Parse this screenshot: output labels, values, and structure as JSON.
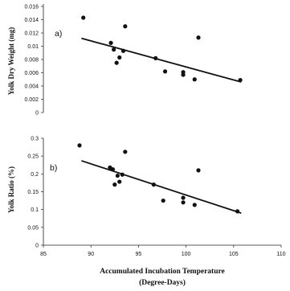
{
  "chart_data": {
    "type": "scatter",
    "xlabel": "Accumulated Incubation Temperature",
    "xlabel_sub": "(Degree-Days)",
    "xlim": [
      85,
      110
    ],
    "xticks": [
      "85",
      "90",
      "95",
      "100",
      "105",
      "110"
    ],
    "panels": [
      {
        "label": "a)",
        "ylabel": "Yolk Dry Weight (mg)",
        "ylim": [
          0,
          0.016
        ],
        "yticks": [
          "0",
          "0.002",
          "0.004",
          "0.006",
          "0.008",
          "0.01",
          "0.012",
          "0.014",
          "0.016"
        ],
        "points": [
          {
            "x": 89.2,
            "y": 0.0143
          },
          {
            "x": 92.1,
            "y": 0.0105
          },
          {
            "x": 92.4,
            "y": 0.0095
          },
          {
            "x": 92.7,
            "y": 0.0075
          },
          {
            "x": 93.0,
            "y": 0.0083
          },
          {
            "x": 93.4,
            "y": 0.0093
          },
          {
            "x": 93.6,
            "y": 0.013
          },
          {
            "x": 96.8,
            "y": 0.0082
          },
          {
            "x": 97.8,
            "y": 0.0062
          },
          {
            "x": 99.7,
            "y": 0.0061
          },
          {
            "x": 99.7,
            "y": 0.0057
          },
          {
            "x": 100.9,
            "y": 0.005
          },
          {
            "x": 101.3,
            "y": 0.0113
          },
          {
            "x": 105.7,
            "y": 0.0049
          }
        ],
        "trendline": {
          "x": [
            89,
            105.8
          ],
          "y": [
            0.0112,
            0.0046
          ]
        }
      },
      {
        "label": "b)",
        "ylabel": "Yolk Ratio (%)",
        "ylim": [
          0,
          0.3
        ],
        "yticks": [
          "0",
          "0.05",
          "0.1",
          "0.15",
          "0.2",
          "0.25",
          "0.3"
        ],
        "points": [
          {
            "x": 88.8,
            "y": 0.28
          },
          {
            "x": 92.0,
            "y": 0.218
          },
          {
            "x": 92.3,
            "y": 0.213
          },
          {
            "x": 92.5,
            "y": 0.17
          },
          {
            "x": 92.8,
            "y": 0.195
          },
          {
            "x": 93.0,
            "y": 0.178
          },
          {
            "x": 93.3,
            "y": 0.198
          },
          {
            "x": 93.6,
            "y": 0.262
          },
          {
            "x": 96.6,
            "y": 0.17
          },
          {
            "x": 97.6,
            "y": 0.125
          },
          {
            "x": 99.7,
            "y": 0.133
          },
          {
            "x": 99.7,
            "y": 0.12
          },
          {
            "x": 100.9,
            "y": 0.113
          },
          {
            "x": 101.3,
            "y": 0.21
          },
          {
            "x": 105.4,
            "y": 0.095
          }
        ],
        "trendline": {
          "x": [
            89,
            105.8
          ],
          "y": [
            0.237,
            0.09
          ]
        }
      }
    ]
  }
}
